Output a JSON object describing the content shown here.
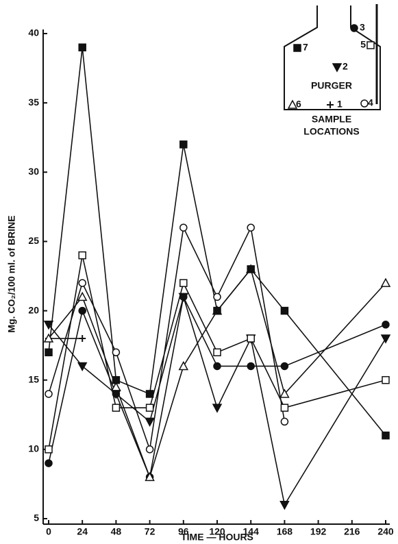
{
  "chart_data": {
    "type": "line",
    "x_label": "TIME — HOURS",
    "y_label": "Mg. CO₂/100 ml. of BRINE",
    "x": [
      0,
      24,
      48,
      72,
      96,
      120,
      144,
      168,
      240
    ],
    "xlim": [
      0,
      240
    ],
    "xticks": [
      0,
      24,
      48,
      72,
      96,
      120,
      144,
      168,
      192,
      216,
      240
    ],
    "ylim": [
      5,
      40
    ],
    "yticks": [
      5,
      10,
      15,
      20,
      25,
      30,
      35,
      40
    ],
    "series": [
      {
        "name": "1",
        "marker": "plus",
        "color": "#111",
        "values": [
          18,
          18,
          null,
          null,
          null,
          null,
          null,
          null,
          null
        ]
      },
      {
        "name": "2",
        "marker": "triangle-down-filled",
        "color": "#111",
        "values": [
          19,
          16,
          14,
          12,
          21,
          13,
          18,
          6,
          18
        ]
      },
      {
        "name": "3",
        "marker": "circle-filled",
        "color": "#111",
        "values": [
          9,
          20,
          14,
          8,
          21,
          16,
          16,
          16,
          19
        ]
      },
      {
        "name": "4",
        "marker": "circle-open",
        "color": "#111",
        "values": [
          14,
          22,
          17,
          10,
          26,
          21,
          26,
          12,
          null
        ]
      },
      {
        "name": "5",
        "marker": "square-open",
        "color": "#111",
        "values": [
          10,
          24,
          13,
          13,
          22,
          17,
          18,
          13,
          15
        ]
      },
      {
        "name": "6",
        "marker": "triangle-up-open",
        "color": "#111",
        "values": [
          18,
          21,
          14.5,
          8,
          16,
          20,
          23,
          14,
          22
        ]
      },
      {
        "name": "7",
        "marker": "square-filled",
        "color": "#111",
        "values": [
          17,
          39,
          15,
          14,
          32,
          20,
          23,
          20,
          11
        ]
      }
    ],
    "inset": {
      "label": "PURGER",
      "title": [
        "SAMPLE",
        "LOCATIONS"
      ]
    }
  }
}
